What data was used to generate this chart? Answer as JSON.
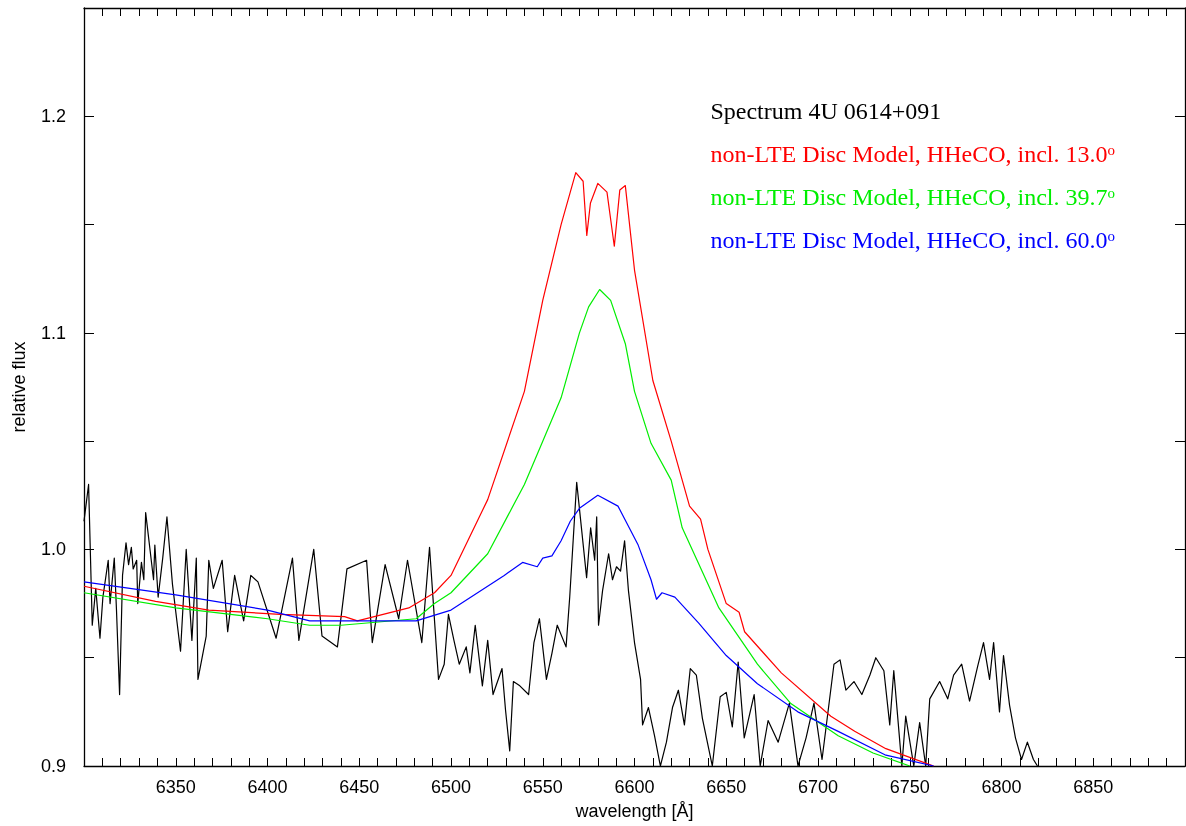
{
  "chart_data": {
    "type": "line",
    "xlabel": "wavelength [Å]",
    "ylabel": "relative flux",
    "xlim": [
      6300,
      6900
    ],
    "ylim": [
      0.9,
      1.25
    ],
    "xticks": [
      {
        "value": 6310,
        "label": null
      },
      {
        "value": 6320,
        "label": null
      },
      {
        "value": 6330,
        "label": null
      },
      {
        "value": 6340,
        "label": null
      },
      6350,
      {
        "value": 6360,
        "label": null
      },
      {
        "value": 6370,
        "label": null
      },
      {
        "value": 6380,
        "label": null
      },
      {
        "value": 6390,
        "label": null
      },
      6400,
      {
        "value": 6410,
        "label": null
      },
      {
        "value": 6420,
        "label": null
      },
      {
        "value": 6430,
        "label": null
      },
      {
        "value": 6440,
        "label": null
      },
      6450,
      {
        "value": 6460,
        "label": null
      },
      {
        "value": 6470,
        "label": null
      },
      {
        "value": 6480,
        "label": null
      },
      {
        "value": 6490,
        "label": null
      },
      6500,
      {
        "value": 6510,
        "label": null
      },
      {
        "value": 6520,
        "label": null
      },
      {
        "value": 6530,
        "label": null
      },
      {
        "value": 6540,
        "label": null
      },
      6550,
      {
        "value": 6560,
        "label": null
      },
      {
        "value": 6570,
        "label": null
      },
      {
        "value": 6580,
        "label": null
      },
      {
        "value": 6590,
        "label": null
      },
      6600,
      {
        "value": 6610,
        "label": null
      },
      {
        "value": 6620,
        "label": null
      },
      {
        "value": 6630,
        "label": null
      },
      {
        "value": 6640,
        "label": null
      },
      6650,
      {
        "value": 6660,
        "label": null
      },
      {
        "value": 6670,
        "label": null
      },
      {
        "value": 6680,
        "label": null
      },
      {
        "value": 6690,
        "label": null
      },
      6700,
      {
        "value": 6710,
        "label": null
      },
      {
        "value": 6720,
        "label": null
      },
      {
        "value": 6730,
        "label": null
      },
      {
        "value": 6740,
        "label": null
      },
      6750,
      {
        "value": 6760,
        "label": null
      },
      {
        "value": 6770,
        "label": null
      },
      {
        "value": 6780,
        "label": null
      },
      {
        "value": 6790,
        "label": null
      },
      6800,
      {
        "value": 6810,
        "label": null
      },
      {
        "value": 6820,
        "label": null
      },
      {
        "value": 6830,
        "label": null
      },
      {
        "value": 6840,
        "label": null
      },
      6850,
      {
        "value": 6860,
        "label": null
      },
      {
        "value": 6870,
        "label": null
      },
      {
        "value": 6880,
        "label": null
      },
      {
        "value": 6890,
        "label": null
      }
    ],
    "yticks": [
      0.9,
      {
        "value": 0.95,
        "label": null
      },
      {
        "value": 1.0,
        "label": "1.0"
      },
      {
        "value": 1.05,
        "label": null
      },
      1.1,
      {
        "value": 1.15,
        "label": null
      },
      1.2
    ],
    "legend": "top right",
    "marker": "none",
    "series": [
      {
        "name": "Spectrum 4U 0614+091",
        "color": "#000000",
        "x": [
          6300,
          6302.5,
          6304.5,
          6306.4,
          6308.7,
          6310.3,
          6313.2,
          6314.2,
          6316.5,
          6317.7,
          6319.4,
          6321,
          6322.9,
          6324.3,
          6325.8,
          6326.8,
          6328.7,
          6329.3,
          6331.3,
          6332.6,
          6333.6,
          6337.9,
          6338.6,
          6340.4,
          6342.9,
          6345.2,
          6348.2,
          6352.6,
          6355.7,
          6358.8,
          6361.2,
          6362.1,
          6366.6,
          6368,
          6370.5,
          6375.3,
          6378.3,
          6382.1,
          6387,
          6390.9,
          6394.8,
          6404.7,
          6413.6,
          6417.1,
          6425.2,
          6429.7,
          6438.1,
          6443.3,
          6454,
          6457.1,
          6464.1,
          6471.5,
          6476.3,
          6484.1,
          6488.3,
          6493.2,
          6496.3,
          6498.6,
          6501.6,
          6504.5,
          6508.3,
          6510.3,
          6513.2,
          6517.1,
          6520,
          6522.9,
          6527.8,
          6529.7,
          6532,
          6534,
          6537.5,
          6542.3,
          6545.2,
          6548.2,
          6552,
          6555,
          6557.9,
          6562.7,
          6564.7,
          6568.5,
          6573.9,
          6576.1,
          6578.3,
          6579.4,
          6580.4,
          6582.6,
          6585.9,
          6588,
          6590.2,
          6592.4,
          6594.6,
          6596.7,
          6600,
          6603.3,
          6604.4,
          6607.6,
          6610.9,
          6614.1,
          6617.4,
          6620.7,
          6623.9,
          6627.2,
          6630.4,
          6633.7,
          6637,
          6642.4,
          6646.7,
          6650,
          6653.3,
          6656.5,
          6659.8,
          6665.2,
          6668.5,
          6672.8,
          6678.3,
          6684.4,
          6689.1,
          6693.5,
          6697.8,
          6702.2,
          6708.7,
          6712,
          6715.2,
          6719.6,
          6723.9,
          6728.3,
          6731.5,
          6735.9,
          6739.1,
          6741.3,
          6745.7,
          6747.8,
          6752.2,
          6755.4,
          6758.7,
          6760.9,
          6766.3,
          6770.7,
          6773.9,
          6778.3,
          6782.6,
          6787,
          6790.2,
          6793.5,
          6795.7,
          6798.9,
          6801.1,
          6804.4,
          6807.6,
          6810.9,
          6814.1,
          6817.4,
          6819.6
        ],
        "values": [
          1.013,
          1.03,
          0.965,
          0.982,
          0.959,
          0.978,
          0.995,
          0.975,
          0.996,
          0.972,
          0.933,
          0.988,
          1.003,
          0.993,
          1.001,
          0.991,
          0.995,
          0.975,
          0.994,
          0.986,
          1.017,
          0.986,
          1.002,
          0.978,
          0.996,
          1.015,
          0.984,
          0.953,
          1.0,
          0.958,
          0.996,
          0.94,
          0.96,
          0.995,
          0.982,
          0.995,
          0.962,
          0.988,
          0.967,
          0.988,
          0.985,
          0.959,
          0.996,
          0.958,
          1.0,
          0.96,
          0.955,
          0.991,
          0.995,
          0.957,
          0.993,
          0.968,
          0.995,
          0.957,
          1.001,
          0.94,
          0.947,
          0.97,
          0.958,
          0.947,
          0.955,
          0.943,
          0.965,
          0.937,
          0.958,
          0.933,
          0.945,
          0.926,
          0.907,
          0.939,
          0.937,
          0.933,
          0.957,
          0.968,
          0.94,
          0.952,
          0.965,
          0.955,
          0.978,
          1.031,
          0.987,
          1.01,
          0.995,
          1.015,
          0.965,
          0.981,
          0.998,
          0.986,
          0.992,
          0.99,
          1.004,
          0.981,
          0.957,
          0.94,
          0.919,
          0.927,
          0.914,
          0.9,
          0.911,
          0.927,
          0.935,
          0.919,
          0.945,
          0.942,
          0.922,
          0.9,
          0.932,
          0.934,
          0.918,
          0.948,
          0.913,
          0.933,
          0.9,
          0.921,
          0.911,
          0.929,
          0.9,
          0.913,
          0.929,
          0.903,
          0.947,
          0.949,
          0.935,
          0.939,
          0.933,
          0.942,
          0.95,
          0.944,
          0.919,
          0.944,
          0.9,
          0.923,
          0.9,
          0.92,
          0.9,
          0.931,
          0.939,
          0.931,
          0.942,
          0.947,
          0.93,
          0.946,
          0.957,
          0.94,
          0.957,
          0.925,
          0.951,
          0.928,
          0.913,
          0.903,
          0.911,
          0.903,
          0.9
        ]
      },
      {
        "name": "non-LTE Disc Model, HHeCO, incl. 13.0$^{o}$",
        "color": "#ff0000",
        "x": [
          6300,
          6339,
          6368,
          6407,
          6442,
          6449,
          6477,
          6491,
          6500,
          6520,
          6540,
          6550,
          6560,
          6565,
          6568,
          6572,
          6574,
          6576,
          6580,
          6585,
          6589,
          6592,
          6595,
          6600,
          6610,
          6620,
          6630,
          6636,
          6640,
          6650,
          6657,
          6660,
          6680,
          6707,
          6720,
          6737,
          6750,
          6763
        ],
        "values": [
          0.983,
          0.976,
          0.972,
          0.97,
          0.969,
          0.967,
          0.973,
          0.98,
          0.988,
          1.023,
          1.073,
          1.115,
          1.15,
          1.165,
          1.174,
          1.17,
          1.145,
          1.16,
          1.169,
          1.165,
          1.14,
          1.166,
          1.168,
          1.129,
          1.078,
          1.05,
          1.02,
          1.014,
          1.0,
          0.975,
          0.971,
          0.962,
          0.943,
          0.923,
          0.916,
          0.908,
          0.904,
          0.9
        ]
      },
      {
        "name": "non-LTE Disc Model, HHeCO, incl. 39.7$^{o}$",
        "color": "#00ee00",
        "x": [
          6300,
          6350,
          6400,
          6423,
          6440,
          6481,
          6491,
          6500,
          6520,
          6540,
          6550,
          6560,
          6565,
          6570,
          6575,
          6581,
          6587,
          6595,
          6600,
          6609,
          6620,
          6626,
          6646,
          6667,
          6685,
          6711,
          6730,
          6750
        ],
        "values": [
          0.98,
          0.973,
          0.968,
          0.965,
          0.965,
          0.968,
          0.975,
          0.98,
          0.998,
          1.03,
          1.05,
          1.07,
          1.085,
          1.1,
          1.112,
          1.12,
          1.115,
          1.095,
          1.073,
          1.049,
          1.032,
          1.01,
          0.973,
          0.947,
          0.929,
          0.914,
          0.906,
          0.9
        ]
      },
      {
        "name": "non-LTE Disc Model, HHeCO, incl. 60.0$^{o}$",
        "color": "#0000ff",
        "x": [
          6300,
          6350,
          6400,
          6423,
          6461,
          6481,
          6500,
          6529,
          6539,
          6547,
          6550,
          6555,
          6560,
          6565,
          6570,
          6580,
          6591,
          6602,
          6609,
          6612,
          6615,
          6622,
          6635,
          6650,
          6667,
          6689,
          6711,
          6737,
          6763
        ],
        "values": [
          0.985,
          0.979,
          0.972,
          0.967,
          0.967,
          0.967,
          0.972,
          0.988,
          0.994,
          0.992,
          0.996,
          0.997,
          1.004,
          1.013,
          1.019,
          1.025,
          1.02,
          1.002,
          0.986,
          0.977,
          0.98,
          0.978,
          0.966,
          0.951,
          0.938,
          0.925,
          0.916,
          0.905,
          0.9
        ]
      }
    ]
  }
}
